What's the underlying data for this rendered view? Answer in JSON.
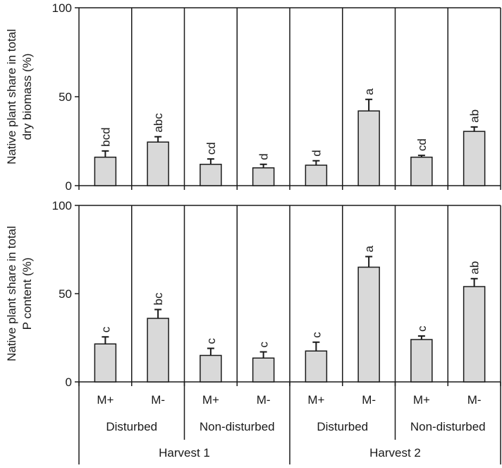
{
  "chart_data": [
    {
      "type": "bar",
      "ylabel_lines": [
        "Native plant share in total",
        "dry biomass (%)"
      ],
      "ylim": [
        0,
        100
      ],
      "yticks": [
        "0",
        "50",
        "100"
      ],
      "grid": false,
      "categories": [
        "M+",
        "M-",
        "M+",
        "M-",
        "M+",
        "M-",
        "M+",
        "M-"
      ],
      "values": [
        16,
        24.5,
        12,
        10,
        11.5,
        42,
        16,
        30.5
      ],
      "errors": [
        3.5,
        3,
        3,
        2,
        2.5,
        6.5,
        1,
        2.5
      ],
      "significance": [
        "bcd",
        "abc",
        "cd",
        "d",
        "d",
        "a",
        "cd",
        "ab"
      ]
    },
    {
      "type": "bar",
      "ylabel_lines": [
        "Native plant share in total",
        "P content (%)"
      ],
      "ylim": [
        0,
        100
      ],
      "yticks": [
        "0",
        "50",
        "100"
      ],
      "grid": false,
      "categories": [
        "M+",
        "M-",
        "M+",
        "M-",
        "M+",
        "M-",
        "M+",
        "M-"
      ],
      "values": [
        21.5,
        36,
        15,
        13.5,
        17.5,
        65,
        24,
        54
      ],
      "errors": [
        4,
        5,
        4,
        3.5,
        5,
        6,
        2,
        4.5
      ],
      "significance": [
        "c",
        "bc",
        "c",
        "c",
        "c",
        "a",
        "c",
        "ab"
      ]
    }
  ],
  "x_groups": {
    "treatment_labels": [
      "M+",
      "M-",
      "M+",
      "M-",
      "M+",
      "M-",
      "M+",
      "M-"
    ],
    "disturbance_labels": [
      "Disturbed",
      "Non-disturbed",
      "Disturbed",
      "Non-disturbed"
    ],
    "harvest_labels": [
      "Harvest 1",
      "Harvest 2"
    ]
  },
  "colors": {
    "bar_fill": "#d9d9d9",
    "bar_stroke": "#1a1a1a",
    "axis": "#1a1a1a",
    "background": "#ffffff"
  }
}
